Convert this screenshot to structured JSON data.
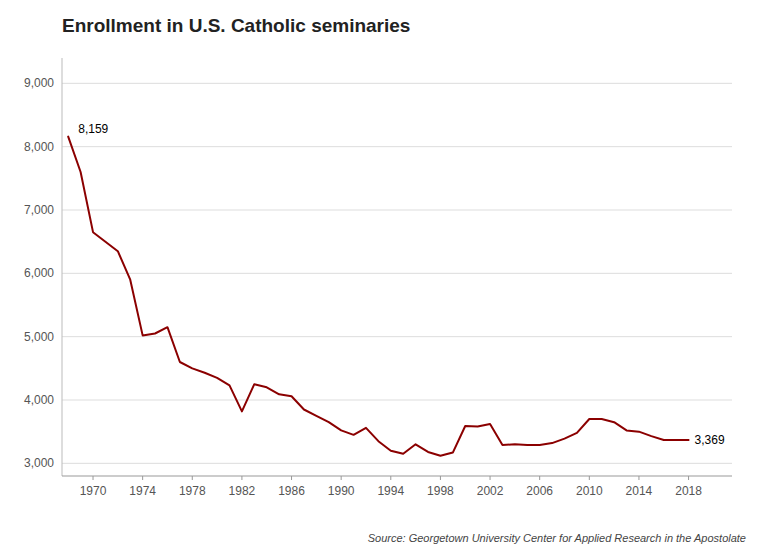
{
  "chart_data": {
    "type": "line",
    "title": "Enrollment in U.S. Catholic seminaries",
    "source": "Source: Georgetown University Center for Applied Research in the Apostolate",
    "color": "#8B0000",
    "x": [
      1968,
      1969,
      1970,
      1971,
      1972,
      1973,
      1974,
      1975,
      1976,
      1977,
      1978,
      1979,
      1980,
      1981,
      1982,
      1983,
      1984,
      1985,
      1986,
      1987,
      1988,
      1989,
      1990,
      1991,
      1992,
      1993,
      1994,
      1995,
      1996,
      1997,
      1998,
      1999,
      2000,
      2001,
      2002,
      2003,
      2004,
      2005,
      2006,
      2007,
      2008,
      2009,
      2010,
      2011,
      2012,
      2013,
      2014,
      2015,
      2016,
      2017,
      2018
    ],
    "values": [
      8159,
      7600,
      6650,
      6500,
      6350,
      5900,
      5020,
      5050,
      5150,
      4600,
      4500,
      4430,
      4350,
      4230,
      3820,
      4250,
      4200,
      4090,
      4060,
      3850,
      3750,
      3650,
      3520,
      3450,
      3560,
      3350,
      3200,
      3150,
      3300,
      3180,
      3120,
      3170,
      3590,
      3580,
      3620,
      3290,
      3300,
      3290,
      3290,
      3320,
      3390,
      3480,
      3700,
      3700,
      3650,
      3520,
      3500,
      3430,
      3369,
      3369,
      3369
    ],
    "xlim": [
      1967.5,
      2021.5
    ],
    "xticks": [
      1970,
      1974,
      1978,
      1982,
      1986,
      1990,
      1994,
      1998,
      2002,
      2006,
      2010,
      2014,
      2018
    ],
    "ylim": [
      2800,
      9400
    ],
    "yticks": [
      {
        "value": 3000,
        "label": "3,000"
      },
      {
        "value": 4000,
        "label": "4,000"
      },
      {
        "value": 5000,
        "label": "5,000"
      },
      {
        "value": 6000,
        "label": "6,000"
      },
      {
        "value": 7000,
        "label": "7,000"
      },
      {
        "value": 8000,
        "label": "8,000"
      },
      {
        "value": 9000,
        "label": "9,000"
      }
    ],
    "grid": true,
    "annotations": [
      {
        "text": "8,159",
        "x": 1968,
        "y": 8159
      },
      {
        "text": "3,369",
        "x": 2018,
        "y": 3369
      }
    ]
  }
}
